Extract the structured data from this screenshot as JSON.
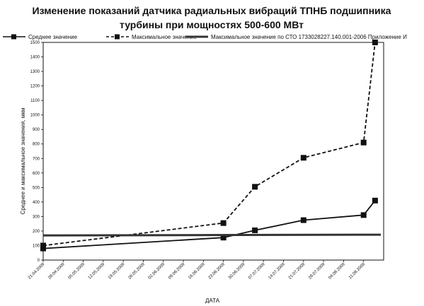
{
  "chart_data": {
    "type": "line",
    "title": "Изменение показаний датчика радиальных вибраций ТПНБ подшипника турбины при мощностях 500-600 МВт",
    "title_lines": [
      "Изменение показаний датчика радиальных вибраций ТПНБ подшипника",
      "турбины при мощностях 500-600 МВт"
    ],
    "xlabel": "ДАТА",
    "ylabel": "Среднее и максимальное значения, мкм",
    "ylim": [
      0,
      1500
    ],
    "y_ticks": [
      0,
      100,
      200,
      300,
      400,
      500,
      600,
      700,
      800,
      900,
      1000,
      1100,
      1200,
      1300,
      1400,
      1500
    ],
    "x_ticks": [
      "21.04.2009",
      "28.04.2009",
      "05.05.2009",
      "12.05.2009",
      "19.05.2009",
      "26.05.2009",
      "02.06.2009",
      "09.06.2009",
      "16.06.2009",
      "23.06.2009",
      "30.06.2009",
      "07.07.2009",
      "14.07.2009",
      "21.07.2009",
      "28.07.2009",
      "04.08.2009",
      "11.08.2009"
    ],
    "legend_position": "top",
    "grid": false,
    "series": [
      {
        "name": "Среднее значение",
        "style": "solid-square-markers",
        "color": "#111111",
        "points": [
          {
            "x": "21.04.2009",
            "y": 80
          },
          {
            "x": "23.06.2009",
            "y": 155
          },
          {
            "x": "04.07.2009",
            "y": 205
          },
          {
            "x": "21.07.2009",
            "y": 275
          },
          {
            "x": "11.08.2009",
            "y": 310
          },
          {
            "x": "15.08.2009",
            "y": 410
          }
        ]
      },
      {
        "name": "Максимальное значение",
        "style": "dashed-square-markers",
        "color": "#111111",
        "points": [
          {
            "x": "21.04.2009",
            "y": 100
          },
          {
            "x": "23.06.2009",
            "y": 255
          },
          {
            "x": "04.07.2009",
            "y": 505
          },
          {
            "x": "21.07.2009",
            "y": 705
          },
          {
            "x": "11.08.2009",
            "y": 810
          },
          {
            "x": "15.08.2009",
            "y": 1500
          }
        ]
      },
      {
        "name": "Максимальное значение по СТО 1733028227.140.001-2006 Приложение И",
        "style": "thick-solid",
        "color": "#333333",
        "points": [
          {
            "x": "21.04.2009",
            "y": 170
          },
          {
            "x": "17.08.2009",
            "y": 175
          }
        ]
      }
    ]
  }
}
